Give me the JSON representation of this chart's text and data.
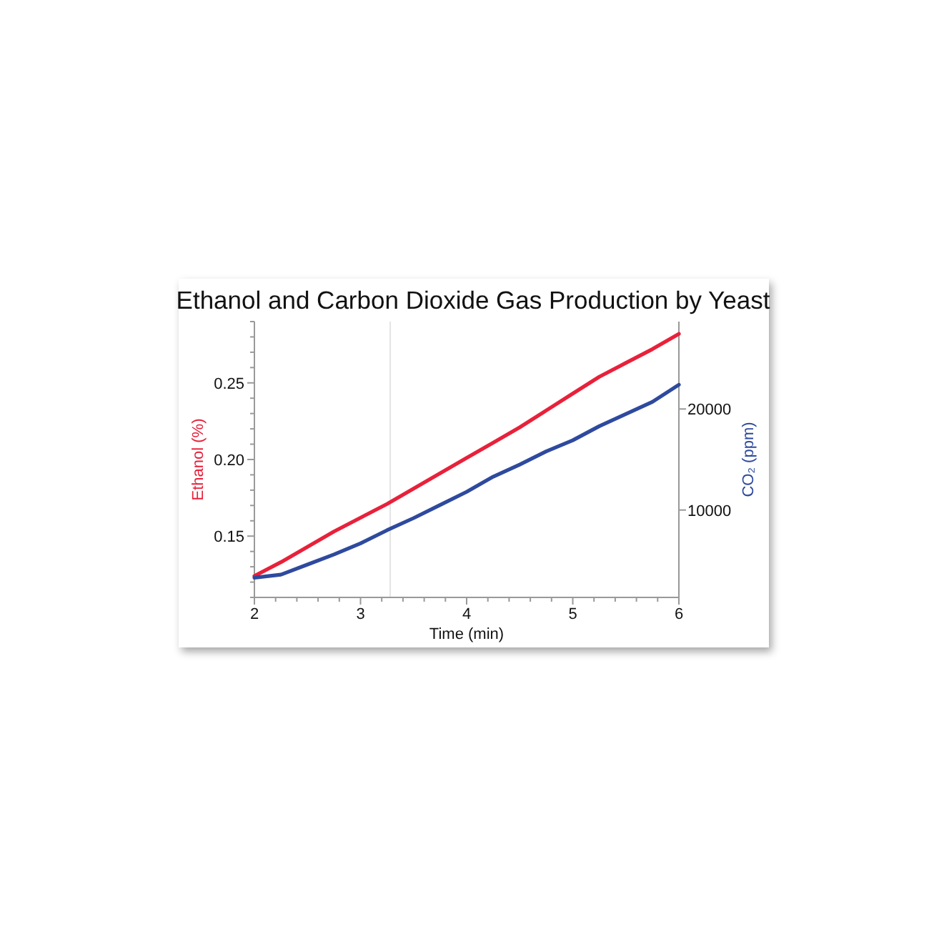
{
  "chart_data": {
    "type": "line",
    "title": "Ethanol and Carbon Dioxide Gas Production by Yeast",
    "xlabel": "Time  (min)",
    "ylabel": "Ethanol  (%)",
    "y2label": "CO₂ (ppm)",
    "x": [
      2,
      2.25,
      2.5,
      2.75,
      3,
      3.25,
      3.5,
      3.75,
      4,
      4.25,
      4.5,
      4.75,
      5,
      5.25,
      5.5,
      5.75,
      6
    ],
    "series": [
      {
        "color": "#e8213a",
        "values": [
          0.124,
          0.133,
          0.143,
          0.153,
          0.162,
          0.171,
          0.181,
          0.191,
          0.201,
          0.211,
          0.221,
          0.232,
          0.243,
          0.254,
          0.263,
          0.272,
          0.282
        ]
      },
      {
        "color": "#2e4a9e",
        "axis": "y2",
        "values": [
          3300,
          3600,
          4600,
          5600,
          6700,
          8000,
          9200,
          10500,
          11800,
          13300,
          14500,
          15800,
          16900,
          18300,
          19500,
          20700,
          22400
        ]
      }
    ],
    "xlim": [
      2,
      6
    ],
    "xticks": [
      2,
      {
        "value": 2.2,
        "label": null
      },
      {
        "value": 2.4,
        "label": null
      },
      {
        "value": 2.6,
        "label": null
      },
      {
        "value": 2.8,
        "label": null
      },
      3,
      {
        "value": 3.2,
        "label": null
      },
      {
        "value": 3.4,
        "label": null
      },
      {
        "value": 3.6,
        "label": null
      },
      {
        "value": 3.8,
        "label": null
      },
      4,
      {
        "value": 4.2,
        "label": null
      },
      {
        "value": 4.4,
        "label": null
      },
      {
        "value": 4.6,
        "label": null
      },
      {
        "value": 4.8,
        "label": null
      },
      5,
      {
        "value": 5.2,
        "label": null
      },
      {
        "value": 5.4,
        "label": null
      },
      {
        "value": 5.6,
        "label": null
      },
      {
        "value": 5.8,
        "label": null
      },
      6
    ],
    "ylim": [
      0.11,
      0.29
    ],
    "yticks": [
      {
        "value": 0.11,
        "label": null
      },
      {
        "value": 0.12,
        "label": null
      },
      {
        "value": 0.13,
        "label": null
      },
      {
        "value": 0.14,
        "label": null
      },
      {
        "value": 0.15,
        "label": "0.15"
      },
      {
        "value": 0.16,
        "label": null
      },
      {
        "value": 0.17,
        "label": null
      },
      {
        "value": 0.18,
        "label": null
      },
      {
        "value": 0.19,
        "label": null
      },
      {
        "value": 0.2,
        "label": "0.20"
      },
      {
        "value": 0.21,
        "label": null
      },
      {
        "value": 0.22,
        "label": null
      },
      {
        "value": 0.23,
        "label": null
      },
      {
        "value": 0.24,
        "label": null
      },
      {
        "value": 0.25,
        "label": "0.25"
      },
      {
        "value": 0.26,
        "label": null
      },
      {
        "value": 0.27,
        "label": null
      },
      {
        "value": 0.28,
        "label": null
      },
      {
        "value": 0.29,
        "label": null
      }
    ],
    "y2lim": [
      1350,
      28650
    ],
    "y2ticks": [
      10000,
      20000
    ],
    "ref_lines": [
      {
        "axis": "x",
        "value": 3.28,
        "color": "#e4e4e4"
      }
    ],
    "grid": false,
    "legend": false,
    "line_style": "solid",
    "marker": "none"
  }
}
